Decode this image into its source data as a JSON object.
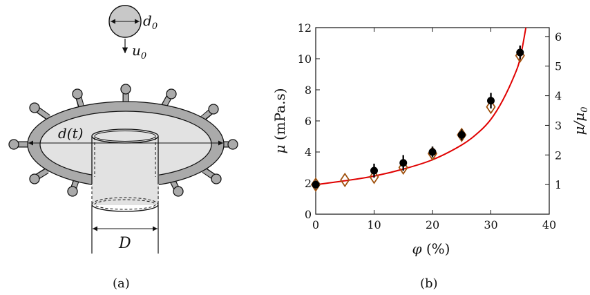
{
  "panel_a": {
    "label_d0": "d",
    "label_d0_sub": "0",
    "label_u0": "u",
    "label_u0_sub": "0",
    "label_dt": "d(t)",
    "label_D": "D",
    "caption": "(a)"
  },
  "panel_b": {
    "caption": "(b)",
    "ylabel_left_sym": "μ",
    "ylabel_left_unit": "(mPa.s)",
    "ylabel_right": "μ/μ",
    "ylabel_right_sub": "0",
    "xlabel_sym": "φ",
    "xlabel_unit": "(%)"
  },
  "colors": {
    "fit_curve": "#e00000",
    "diamond": "#a0520f",
    "circle": "#000000",
    "drop_fill": "#c8c8c8",
    "ring_fill": "#aaaaaa",
    "inner_fill": "#e2e2e2"
  },
  "chart_data": {
    "type": "scatter",
    "xlabel": "φ (%)",
    "ylabel": "μ (mPa.s)",
    "ylabel_right": "μ/μ0",
    "xlim": [
      0,
      40
    ],
    "ylim": [
      0,
      12
    ],
    "ylim_right": [
      0,
      6.3
    ],
    "xticks": [
      0,
      10,
      20,
      30,
      40
    ],
    "yticks": [
      0,
      2,
      4,
      6,
      8,
      10,
      12
    ],
    "yticks_right": [
      1,
      2,
      3,
      4,
      5,
      6
    ],
    "series": [
      {
        "marker": "diamond",
        "x": [
          0,
          5,
          10,
          15,
          20,
          25,
          30,
          35
        ],
        "y": [
          1.9,
          2.2,
          2.4,
          3.0,
          3.9,
          5.1,
          6.9,
          10.2
        ]
      },
      {
        "marker": "circle",
        "x": [
          0,
          10,
          15,
          20,
          25,
          30,
          35
        ],
        "y": [
          1.9,
          2.8,
          3.3,
          4.0,
          5.1,
          7.3,
          10.4
        ],
        "err": [
          0.2,
          0.45,
          0.5,
          0.35,
          0.35,
          0.5,
          0.45
        ]
      }
    ],
    "fit_curve": {
      "x": [
        0,
        5,
        10,
        15,
        20,
        25,
        28,
        30,
        32,
        34,
        35,
        36
      ],
      "y": [
        1.9,
        2.15,
        2.45,
        2.9,
        3.5,
        4.45,
        5.3,
        6.1,
        7.3,
        8.9,
        10.0,
        12.0
      ]
    }
  }
}
